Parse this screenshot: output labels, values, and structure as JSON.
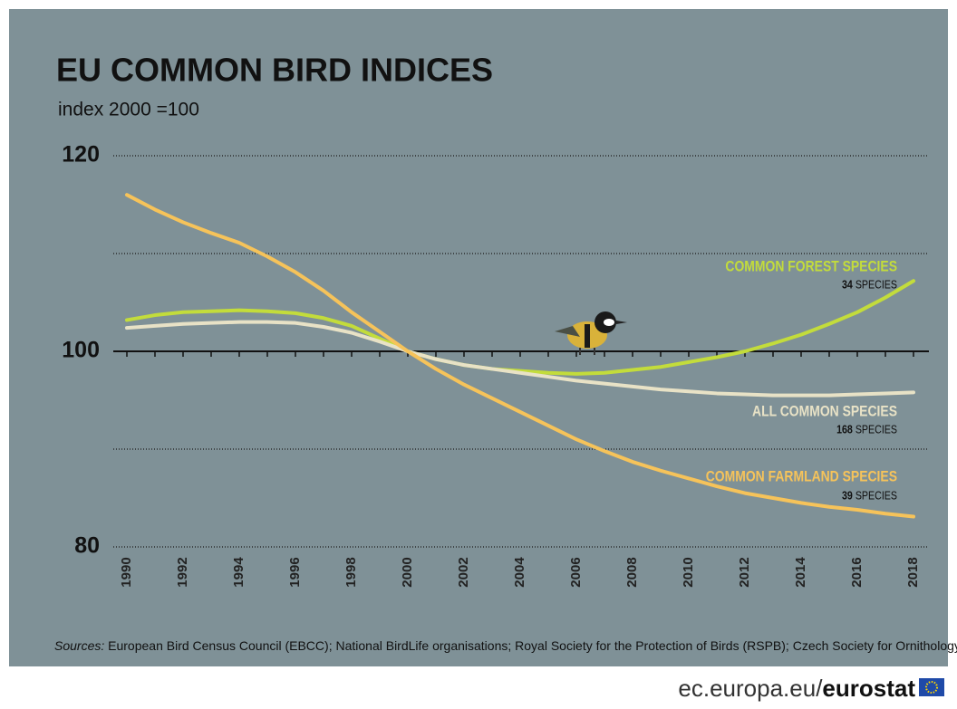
{
  "chart_data": {
    "type": "line",
    "title": "EU COMMON BIRD INDICES",
    "subtitle": "index 2000 =100",
    "x": [
      1990,
      1991,
      1992,
      1993,
      1994,
      1995,
      1996,
      1997,
      1998,
      1999,
      2000,
      2001,
      2002,
      2003,
      2004,
      2005,
      2006,
      2007,
      2008,
      2009,
      2010,
      2011,
      2012,
      2013,
      2014,
      2015,
      2016,
      2017,
      2018
    ],
    "xlim": [
      1990,
      2018
    ],
    "xticks": [
      1990,
      1992,
      1994,
      1996,
      1998,
      2000,
      2002,
      2004,
      2006,
      2008,
      2010,
      2012,
      2014,
      2016,
      2018
    ],
    "ylim": [
      80,
      120
    ],
    "yticks": [
      80,
      100,
      120
    ],
    "minor_gridlines": [
      90,
      110
    ],
    "reference_line": 100,
    "grid": true,
    "series": [
      {
        "name": "COMMON FOREST SPECIES",
        "color": "#c3dc3b",
        "count": 34,
        "count_label": "SPECIES",
        "values": [
          103.2,
          103.7,
          104.0,
          104.1,
          104.2,
          104.1,
          103.9,
          103.4,
          102.6,
          101.3,
          100,
          99.2,
          98.6,
          98.2,
          98.0,
          97.8,
          97.7,
          97.8,
          98.1,
          98.4,
          98.9,
          99.4,
          100,
          100.8,
          101.7,
          102.8,
          104,
          105.5,
          107.2
        ]
      },
      {
        "name": "ALL COMMON SPECIES",
        "color": "#e8e2c6",
        "count": 168,
        "count_label": "SPECIES",
        "values": [
          102.4,
          102.6,
          102.8,
          102.9,
          103,
          103,
          102.9,
          102.5,
          101.9,
          101,
          100,
          99.2,
          98.6,
          98.2,
          97.8,
          97.4,
          97.0,
          96.7,
          96.4,
          96.1,
          95.9,
          95.7,
          95.6,
          95.5,
          95.5,
          95.5,
          95.6,
          95.7,
          95.8
        ]
      },
      {
        "name": "COMMON FARMLAND SPECIES",
        "color": "#f6c35a",
        "count": 39,
        "count_label": "SPECIES",
        "values": [
          116.0,
          114.5,
          113.2,
          112.1,
          111.1,
          109.7,
          108.1,
          106.2,
          104.0,
          102.0,
          100,
          98.2,
          96.6,
          95.2,
          93.8,
          92.4,
          91.0,
          89.8,
          88.7,
          87.8,
          87.0,
          86.2,
          85.5,
          85.0,
          84.5,
          84.1,
          83.8,
          83.4,
          83.1
        ]
      }
    ],
    "source_prefix": "Sources:",
    "source": "European Bird Census Council (EBCC); National BirdLife organisations; Royal Society for the Protection of Birds (RSPB); Czech Society for Ornithology (CSO)",
    "footer_site": "ec.europa.eu/",
    "footer_brand": "eurostat"
  }
}
